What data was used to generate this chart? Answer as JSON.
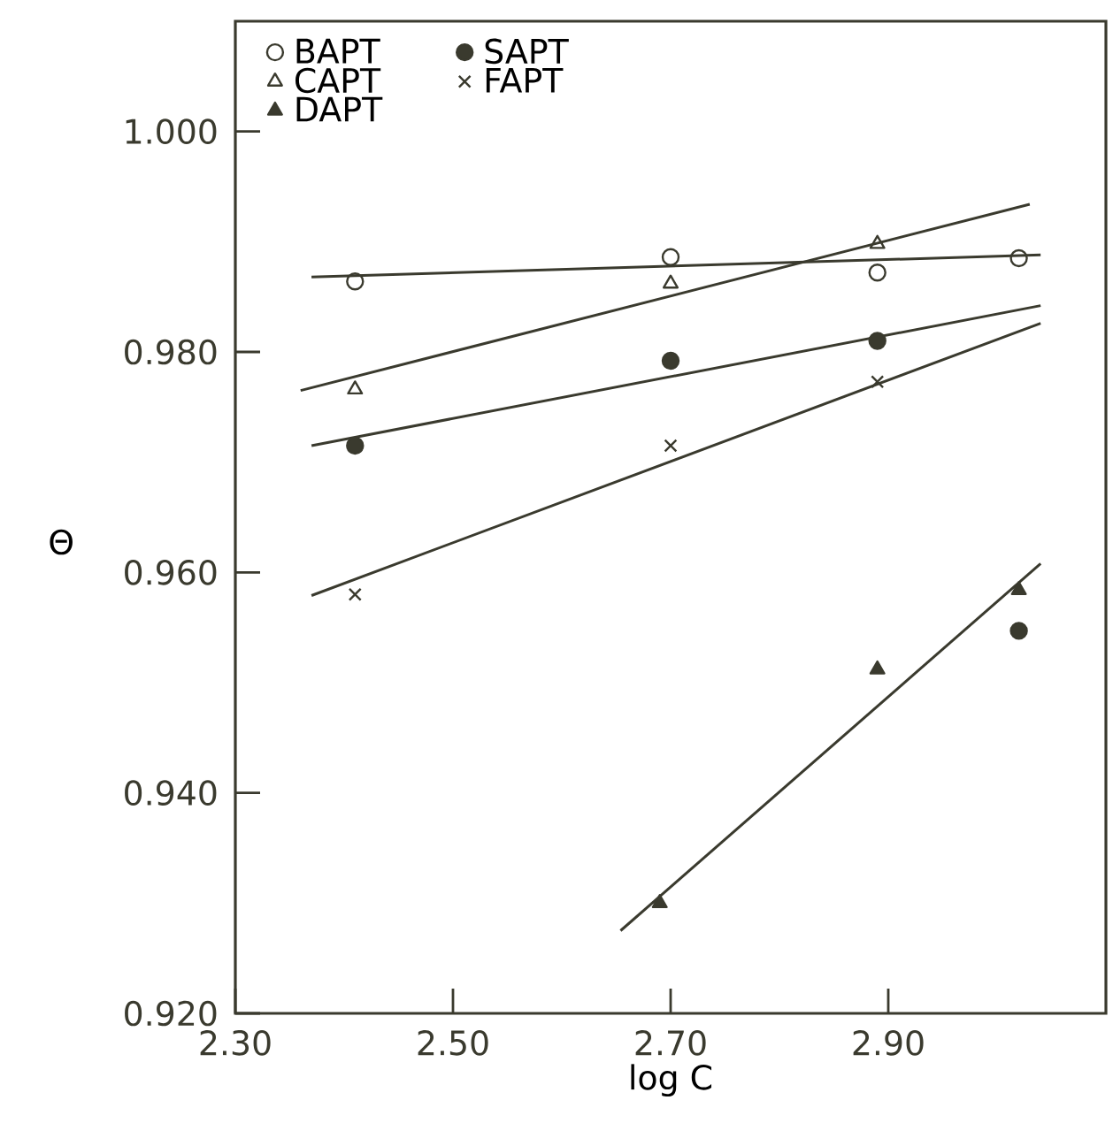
{
  "chart_data": {
    "type": "scatter",
    "xlabel": "log C",
    "ylabel": "Θ",
    "xlim": [
      2.3,
      3.1
    ],
    "ylim": [
      0.92,
      1.01
    ],
    "xticks": [
      {
        "value": 2.3,
        "label": "2.30"
      },
      {
        "value": 2.5,
        "label": "2.50"
      },
      {
        "value": 2.7,
        "label": "2.70"
      },
      {
        "value": 2.9,
        "label": "2.90"
      }
    ],
    "yticks": [
      {
        "value": 0.92,
        "label": "0.920"
      },
      {
        "value": 0.94,
        "label": "0.940"
      },
      {
        "value": 0.96,
        "label": "0.960"
      },
      {
        "value": 0.98,
        "label": "0.980"
      },
      {
        "value": 1.0,
        "label": "1.000"
      }
    ],
    "legend": "top left",
    "grid": false,
    "series": [
      {
        "name": "BAPT",
        "marker": "circle open",
        "color": "#3a3a2e",
        "x": [
          2.41,
          2.7,
          2.89,
          3.02
        ],
        "values": [
          0.9864,
          0.9886,
          0.9872,
          0.9885
        ]
      },
      {
        "name": "SAPT",
        "marker": "circle",
        "color": "#3a3a2e",
        "x": [
          2.41,
          2.7,
          2.89,
          3.02
        ],
        "values": [
          0.9715,
          0.9792,
          0.981,
          0.9547
        ]
      },
      {
        "name": "CAPT",
        "marker": "triangle open",
        "color": "#3a3a2e",
        "x": [
          2.41,
          2.7,
          2.89
        ],
        "values": [
          0.9766,
          0.9862,
          0.9898
        ]
      },
      {
        "name": "FAPT",
        "marker": "cross",
        "color": "#3a3a2e",
        "x": [
          2.41,
          2.7,
          2.89
        ],
        "values": [
          0.958,
          0.9715,
          0.9773
        ]
      },
      {
        "name": "DAPT",
        "marker": "triangle",
        "color": "#3a3a2e",
        "x": [
          2.69,
          2.89,
          3.02
        ],
        "values": [
          0.93,
          0.9512,
          0.9584
        ]
      },
      {
        "type": "line",
        "marker": "none",
        "color": "#3a3a2e",
        "x": [
          2.37,
          3.04
        ],
        "values": [
          0.9868,
          0.9888
        ]
      },
      {
        "type": "line",
        "marker": "none",
        "color": "#3a3a2e",
        "x": [
          2.36,
          3.03
        ],
        "values": [
          0.9765,
          0.9934
        ]
      },
      {
        "type": "line",
        "marker": "none",
        "color": "#3a3a2e",
        "x": [
          2.37,
          3.04
        ],
        "values": [
          0.9715,
          0.9842
        ]
      },
      {
        "type": "line",
        "marker": "none",
        "color": "#3a3a2e",
        "x": [
          2.37,
          3.04
        ],
        "values": [
          0.9579,
          0.9826
        ]
      },
      {
        "type": "line",
        "marker": "none",
        "color": "#3a3a2e",
        "x": [
          2.654,
          3.04
        ],
        "values": [
          0.9275,
          0.9608
        ]
      }
    ]
  }
}
